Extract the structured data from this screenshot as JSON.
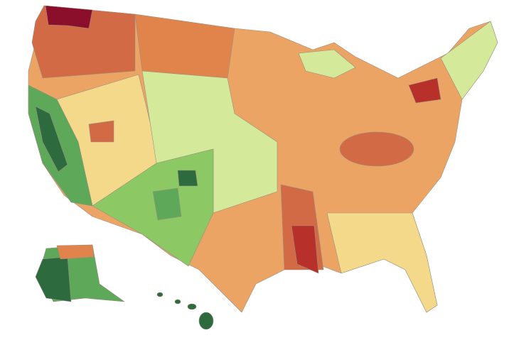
{
  "map": {
    "type": "choropleth",
    "palette": [
      "#2d6a3e",
      "#5ea85a",
      "#8cc864",
      "#d4ea9a",
      "#f5d98a",
      "#eba463",
      "#e0844c",
      "#d26a45",
      "#b8302a",
      "#8b0f2a"
    ]
  }
}
